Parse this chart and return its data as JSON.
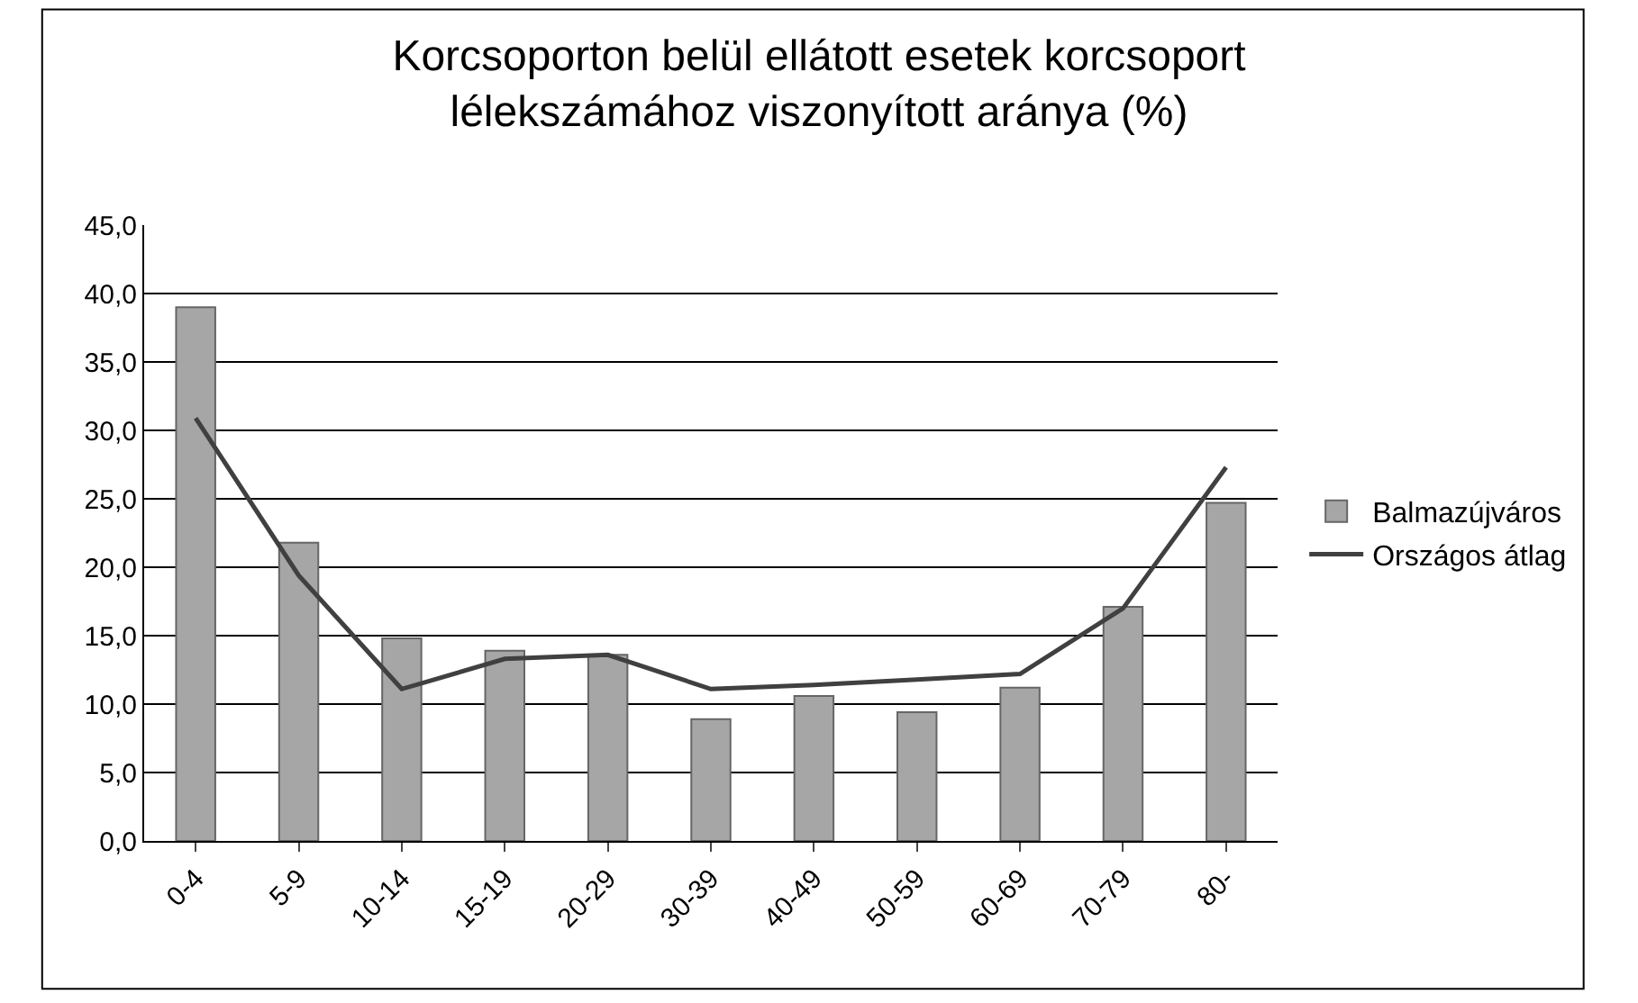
{
  "chart_data": {
    "type": "bar",
    "title": "Korcsoporton belül ellátott esetek korcsoport\nlélekszámához viszonyított aránya (%)",
    "categories": [
      "0-4",
      "5-9",
      "10-14",
      "15-19",
      "20-29",
      "30-39",
      "40-49",
      "50-59",
      "60-69",
      "70-79",
      "80-"
    ],
    "series": [
      {
        "name": "Balmazújváros",
        "color": "#a6a6a6",
        "values": [
          39.0,
          21.8,
          14.8,
          13.9,
          13.6,
          8.9,
          10.6,
          9.4,
          11.2,
          17.1,
          24.7
        ]
      },
      {
        "name": "Országos átlag",
        "type": "line",
        "color": "#404040",
        "values": [
          30.9,
          19.4,
          11.1,
          13.3,
          13.6,
          11.1,
          11.4,
          11.8,
          12.2,
          17.0,
          27.3
        ]
      }
    ],
    "ylim": [
      0,
      45
    ],
    "yticks": [
      {
        "value": 0,
        "label": "0,0"
      },
      {
        "value": 5,
        "label": "5,0"
      },
      {
        "value": 10,
        "label": "10,0"
      },
      {
        "value": 15,
        "label": "15,0"
      },
      {
        "value": 20,
        "label": "20,0"
      },
      {
        "value": 25,
        "label": "25,0"
      },
      {
        "value": 30,
        "label": "30,0"
      },
      {
        "value": 35,
        "label": "35,0"
      },
      {
        "value": 40,
        "label": "40,0"
      },
      {
        "value": 45,
        "label": "45,0"
      }
    ],
    "grid": "y",
    "legend": "right",
    "marker": "none",
    "line_style": "solid"
  }
}
